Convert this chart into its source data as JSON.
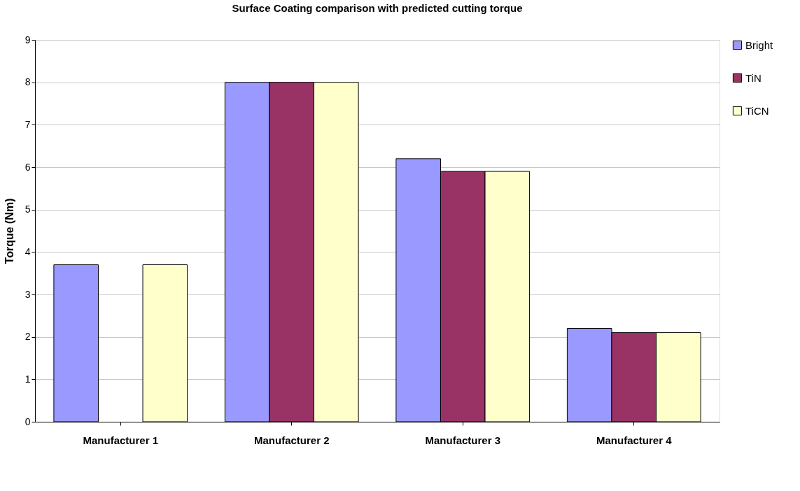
{
  "chart_data": {
    "type": "bar",
    "title": "Surface Coating comparison with predicted cutting torque",
    "ylabel": "Torque (Nm)",
    "categories": [
      "Manufacturer 1",
      "Manufacturer 2",
      "Manufacturer 3",
      "Manufacturer 4"
    ],
    "series": [
      {
        "name": "Bright",
        "color": "#9999ff",
        "values": [
          3.7,
          8,
          6.2,
          2.2
        ]
      },
      {
        "name": "TiN",
        "color": "#993366",
        "values": [
          null,
          8,
          5.9,
          2.1
        ]
      },
      {
        "name": "TiCN",
        "color": "#ffffcc",
        "values": [
          3.7,
          8,
          5.9,
          2.1
        ]
      }
    ],
    "ylim": [
      0,
      9
    ],
    "yticks": [
      0,
      1,
      2,
      3,
      4,
      5,
      6,
      7,
      8,
      9
    ],
    "grid": "y",
    "legend": "right"
  }
}
